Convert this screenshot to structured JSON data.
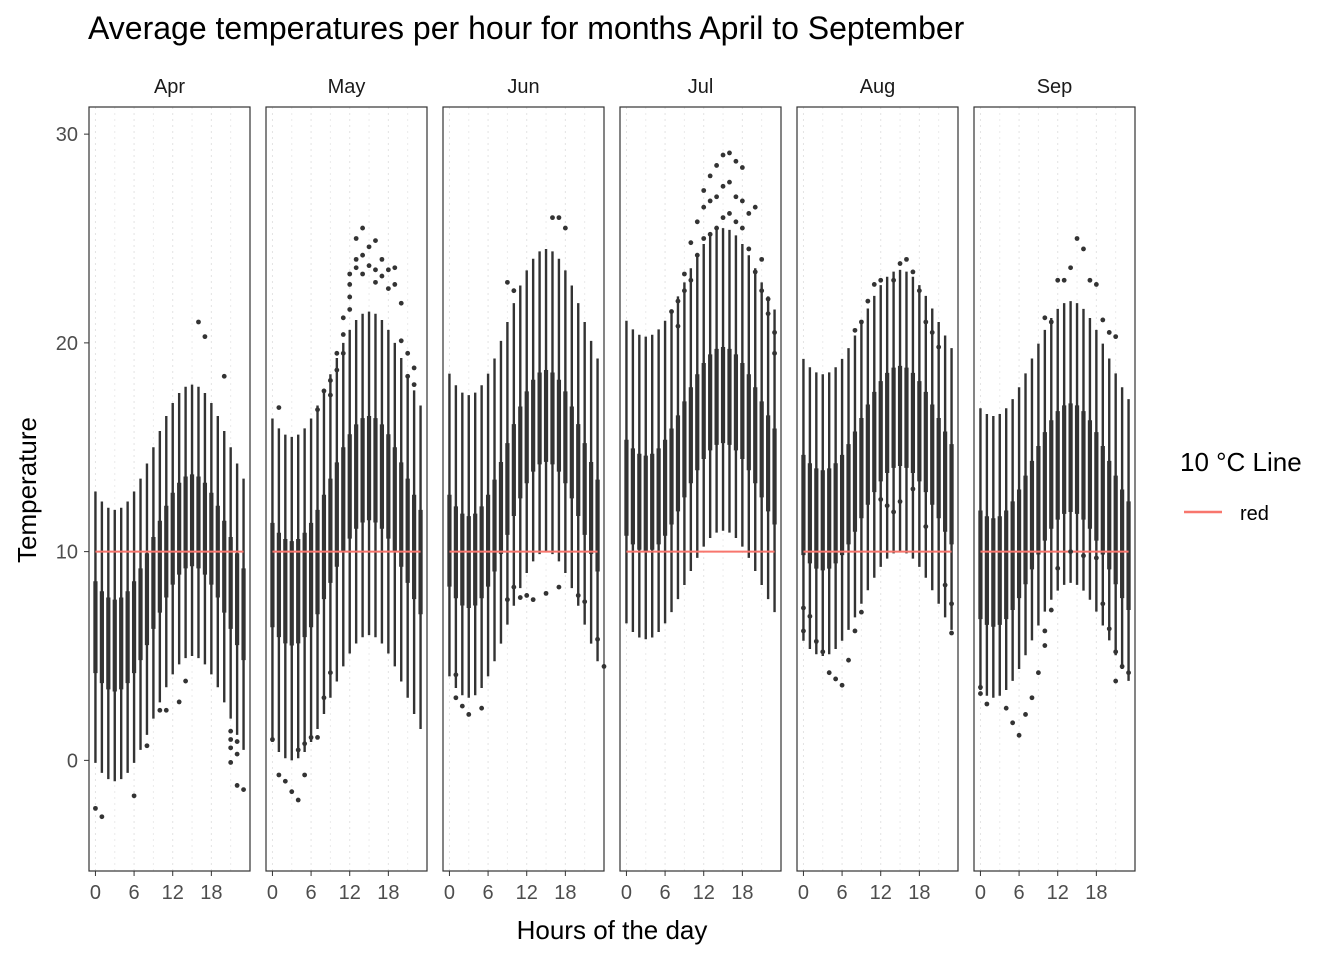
{
  "chart_data": {
    "type": "boxplot",
    "title": "Average temperatures per hour for months April to September",
    "xlabel": "Hours of the day",
    "ylabel": "Temperature",
    "x_ticks": [
      0,
      6,
      12,
      18
    ],
    "y_ticks": [
      0,
      10,
      20,
      30
    ],
    "xlim": [
      -1,
      24
    ],
    "ylim": [
      -5.3,
      31.3
    ],
    "grid": "vertical minor dotted",
    "legend": {
      "title": "10 °C Line",
      "position": "right",
      "items": [
        {
          "label": "red",
          "color": "#F8766D"
        }
      ]
    },
    "reference_line": {
      "y": 10,
      "color": "#F8766D"
    },
    "box_color": "#333333",
    "panels": [
      {
        "month": "Apr",
        "shape": {
          "mean_min": 5.5,
          "mean_max": 11.5,
          "peak_hour": 15,
          "iqr_half": 2.2,
          "whisker_low": 6.5,
          "whisker_high": 6.5
        },
        "outliers_low": [
          [
            0,
            -2.3
          ],
          [
            1,
            -2.7
          ],
          [
            6,
            -1.7
          ],
          [
            8,
            0.7
          ],
          [
            10,
            2.4
          ],
          [
            11,
            2.4
          ],
          [
            13,
            2.8
          ],
          [
            14,
            3.8
          ],
          [
            21,
            1.4
          ],
          [
            21,
            1.0
          ],
          [
            21,
            0.6
          ],
          [
            22,
            0.9
          ],
          [
            22,
            0.3
          ],
          [
            21,
            -0.1
          ],
          [
            22,
            -1.2
          ],
          [
            23,
            -1.4
          ]
        ],
        "outliers_high": [
          [
            16,
            21.0
          ],
          [
            17,
            20.3
          ],
          [
            20,
            18.4
          ]
        ]
      },
      {
        "month": "May",
        "shape": {
          "mean_min": 8.0,
          "mean_max": 14.0,
          "peak_hour": 15,
          "iqr_half": 2.5,
          "whisker_low": 8.0,
          "whisker_high": 7.5
        },
        "outliers_low": [
          [
            0,
            1.0
          ],
          [
            1,
            -0.7
          ],
          [
            2,
            -1.0
          ],
          [
            3,
            -1.5
          ],
          [
            4,
            -1.9
          ],
          [
            5,
            -0.7
          ],
          [
            4,
            0.5
          ],
          [
            5,
            0.8
          ],
          [
            6,
            1.1
          ],
          [
            7,
            1.1
          ],
          [
            8,
            3.0
          ],
          [
            9,
            4.2
          ]
        ],
        "outliers_high": [
          [
            1,
            16.9
          ],
          [
            7,
            16.8
          ],
          [
            8,
            17.7
          ],
          [
            9,
            17.5
          ],
          [
            9,
            18.2
          ],
          [
            10,
            18.7
          ],
          [
            10,
            19.5
          ],
          [
            11,
            19.5
          ],
          [
            11,
            20.4
          ],
          [
            11,
            21.2
          ],
          [
            12,
            21.6
          ],
          [
            12,
            22.2
          ],
          [
            12,
            22.8
          ],
          [
            12,
            23.3
          ],
          [
            13,
            23.6
          ],
          [
            13,
            24.0
          ],
          [
            13,
            25.0
          ],
          [
            14,
            23.3
          ],
          [
            14,
            24.2
          ],
          [
            14,
            25.5
          ],
          [
            15,
            23.7
          ],
          [
            15,
            24.6
          ],
          [
            16,
            22.9
          ],
          [
            16,
            23.5
          ],
          [
            16,
            24.9
          ],
          [
            17,
            23.2
          ],
          [
            17,
            24.0
          ],
          [
            18,
            22.6
          ],
          [
            18,
            23.5
          ],
          [
            19,
            22.8
          ],
          [
            19,
            23.6
          ],
          [
            20,
            21.9
          ],
          [
            20,
            20.1
          ],
          [
            21,
            19.5
          ],
          [
            22,
            18.8
          ],
          [
            21,
            18.4
          ],
          [
            22,
            18.0
          ]
        ]
      },
      {
        "month": "Jun",
        "shape": {
          "mean_min": 9.5,
          "mean_max": 16.5,
          "peak_hour": 15,
          "iqr_half": 2.2,
          "whisker_low": 6.5,
          "whisker_high": 8.0
        },
        "outliers_low": [
          [
            1,
            4.1
          ],
          [
            1,
            3.0
          ],
          [
            2,
            2.6
          ],
          [
            3,
            2.2
          ],
          [
            5,
            2.5
          ],
          [
            9,
            7.7
          ],
          [
            10,
            8.3
          ],
          [
            11,
            7.8
          ],
          [
            12,
            7.9
          ],
          [
            13,
            7.7
          ],
          [
            15,
            8.0
          ],
          [
            17,
            8.3
          ],
          [
            20,
            7.9
          ],
          [
            21,
            7.6
          ],
          [
            23,
            5.8
          ],
          [
            24,
            4.5
          ]
        ],
        "outliers_high": [
          [
            9,
            22.9
          ],
          [
            10,
            22.5
          ],
          [
            16,
            26.0
          ],
          [
            17,
            26.0
          ],
          [
            18,
            25.5
          ]
        ]
      },
      {
        "month": "Jul",
        "shape": {
          "mean_min": 12.3,
          "mean_max": 17.5,
          "peak_hour": 15,
          "iqr_half": 2.3,
          "whisker_low": 6.5,
          "whisker_high": 8.0
        },
        "outliers_low": [],
        "outliers_high": [
          [
            7,
            21.5
          ],
          [
            8,
            22.0
          ],
          [
            8,
            20.8
          ],
          [
            9,
            22.5
          ],
          [
            9,
            23.3
          ],
          [
            10,
            23.0
          ],
          [
            10,
            24.8
          ],
          [
            11,
            24.2
          ],
          [
            11,
            25.8
          ],
          [
            12,
            25.0
          ],
          [
            12,
            26.5
          ],
          [
            12,
            27.3
          ],
          [
            13,
            25.2
          ],
          [
            13,
            26.8
          ],
          [
            13,
            28.0
          ],
          [
            14,
            25.5
          ],
          [
            14,
            27.0
          ],
          [
            14,
            28.5
          ],
          [
            15,
            26.0
          ],
          [
            15,
            27.5
          ],
          [
            15,
            29.0
          ],
          [
            16,
            26.2
          ],
          [
            16,
            27.7
          ],
          [
            16,
            29.1
          ],
          [
            17,
            25.8
          ],
          [
            17,
            27.0
          ],
          [
            17,
            28.7
          ],
          [
            18,
            25.5
          ],
          [
            18,
            26.8
          ],
          [
            18,
            28.4
          ],
          [
            19,
            24.5
          ],
          [
            19,
            26.2
          ],
          [
            20,
            23.4
          ],
          [
            20,
            26.5
          ],
          [
            21,
            22.5
          ],
          [
            21,
            24.0
          ],
          [
            22,
            22.1
          ],
          [
            22,
            21.4
          ],
          [
            23,
            20.5
          ],
          [
            23,
            19.5
          ]
        ]
      },
      {
        "month": "Aug",
        "shape": {
          "mean_min": 11.5,
          "mean_max": 16.5,
          "peak_hour": 15,
          "iqr_half": 2.4,
          "whisker_low": 6.5,
          "whisker_high": 7.0
        },
        "outliers_low": [
          [
            0,
            7.3
          ],
          [
            0,
            6.2
          ],
          [
            1,
            6.9
          ],
          [
            2,
            5.7
          ],
          [
            3,
            5.2
          ],
          [
            4,
            4.2
          ],
          [
            5,
            3.9
          ],
          [
            6,
            3.6
          ],
          [
            7,
            4.8
          ],
          [
            8,
            6.2
          ],
          [
            9,
            7.1
          ],
          [
            12,
            12.5
          ],
          [
            13,
            12.2
          ],
          [
            14,
            11.9
          ],
          [
            15,
            12.4
          ],
          [
            17,
            13.0
          ],
          [
            19,
            11.2
          ],
          [
            22,
            8.4
          ],
          [
            23,
            7.5
          ],
          [
            23,
            6.1
          ]
        ],
        "outliers_high": [
          [
            8,
            20.6
          ],
          [
            9,
            21.0
          ],
          [
            10,
            22.0
          ],
          [
            11,
            22.8
          ],
          [
            12,
            23.0
          ],
          [
            14,
            23.0
          ],
          [
            15,
            23.8
          ],
          [
            16,
            24.0
          ],
          [
            17,
            23.4
          ],
          [
            18,
            22.5
          ],
          [
            19,
            21.0
          ],
          [
            20,
            20.5
          ],
          [
            21,
            19.8
          ]
        ]
      },
      {
        "month": "Sep",
        "shape": {
          "mean_min": 9.0,
          "mean_max": 14.5,
          "peak_hour": 14,
          "iqr_half": 2.6,
          "whisker_low": 6.0,
          "whisker_high": 7.5
        },
        "outliers_low": [
          [
            0,
            3.5
          ],
          [
            0,
            3.2
          ],
          [
            1,
            2.7
          ],
          [
            4,
            2.5
          ],
          [
            5,
            1.8
          ],
          [
            6,
            1.2
          ],
          [
            7,
            2.2
          ],
          [
            8,
            3.0
          ],
          [
            9,
            4.2
          ],
          [
            10,
            5.5
          ],
          [
            10,
            6.2
          ],
          [
            11,
            7.2
          ],
          [
            12,
            9.2
          ],
          [
            14,
            10.0
          ],
          [
            16,
            9.8
          ],
          [
            18,
            9.7
          ],
          [
            19,
            7.5
          ],
          [
            20,
            6.3
          ],
          [
            21,
            5.2
          ],
          [
            21,
            3.8
          ],
          [
            22,
            4.5
          ],
          [
            23,
            4.2
          ]
        ],
        "outliers_high": [
          [
            10,
            21.2
          ],
          [
            11,
            21.0
          ],
          [
            12,
            23.0
          ],
          [
            13,
            23.0
          ],
          [
            14,
            23.6
          ],
          [
            15,
            25.0
          ],
          [
            16,
            24.5
          ],
          [
            17,
            23.0
          ],
          [
            18,
            22.8
          ],
          [
            19,
            21.1
          ],
          [
            20,
            20.5
          ],
          [
            21,
            20.3
          ]
        ]
      }
    ]
  }
}
